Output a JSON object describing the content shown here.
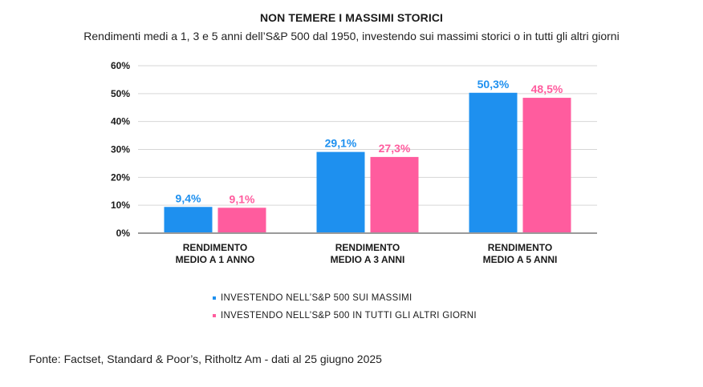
{
  "chart_data": {
    "type": "bar",
    "title": "NON TEMERE I MASSIMI STORICI",
    "subtitle": "Rendimenti medi a 1, 3 e 5 anni dell’S&P 500 dal 1950, investendo sui massimi storici o in tutti gli altri giorni",
    "categories": [
      [
        "RENDIMENTO",
        "MEDIO A 1 ANNO"
      ],
      [
        "RENDIMENTO",
        "MEDIO A 3 ANNI"
      ],
      [
        "RENDIMENTO",
        "MEDIO A 5 ANNI"
      ]
    ],
    "series": [
      {
        "name": "INVESTENDO NELL’S&P 500 SUI MASSIMI",
        "color": "#1e90ef",
        "values": [
          9.4,
          29.1,
          50.3
        ],
        "labels": [
          "9,4%",
          "29,1%",
          "50,3%"
        ]
      },
      {
        "name": "INVESTENDO NELL’S&P 500 IN TUTTI GLI ALTRI GIORNI",
        "color": "#ff5c9e",
        "values": [
          9.1,
          27.3,
          48.5
        ],
        "labels": [
          "9,1%",
          "27,3%",
          "48,5%"
        ]
      }
    ],
    "yticks": [
      "0%",
      "10%",
      "20%",
      "30%",
      "40%",
      "50%",
      "60%"
    ],
    "ylim": [
      0,
      60
    ],
    "grid": true,
    "legend": "bottom",
    "source": "Fonte: Factset, Standard & Poor’s, Ritholtz Am - dati al 25 giugno 2025"
  }
}
